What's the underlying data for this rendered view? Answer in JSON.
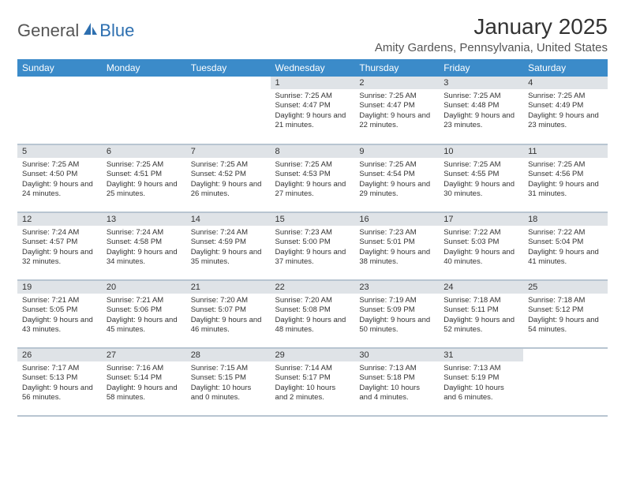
{
  "logo": {
    "general": "General",
    "blue": "Blue"
  },
  "title": "January 2025",
  "location": "Amity Gardens, Pennsylvania, United States",
  "colors": {
    "header_bg": "#3b8bc9",
    "header_text": "#ffffff",
    "daybar_bg": "#dfe3e7",
    "row_border": "#b8c5d1",
    "logo_blue": "#2d6fb0"
  },
  "day_headers": [
    "Sunday",
    "Monday",
    "Tuesday",
    "Wednesday",
    "Thursday",
    "Friday",
    "Saturday"
  ],
  "weeks": [
    [
      null,
      null,
      null,
      {
        "n": "1",
        "sunrise": "7:25 AM",
        "sunset": "4:47 PM",
        "daylight": "9 hours and 21 minutes."
      },
      {
        "n": "2",
        "sunrise": "7:25 AM",
        "sunset": "4:47 PM",
        "daylight": "9 hours and 22 minutes."
      },
      {
        "n": "3",
        "sunrise": "7:25 AM",
        "sunset": "4:48 PM",
        "daylight": "9 hours and 23 minutes."
      },
      {
        "n": "4",
        "sunrise": "7:25 AM",
        "sunset": "4:49 PM",
        "daylight": "9 hours and 23 minutes."
      }
    ],
    [
      {
        "n": "5",
        "sunrise": "7:25 AM",
        "sunset": "4:50 PM",
        "daylight": "9 hours and 24 minutes."
      },
      {
        "n": "6",
        "sunrise": "7:25 AM",
        "sunset": "4:51 PM",
        "daylight": "9 hours and 25 minutes."
      },
      {
        "n": "7",
        "sunrise": "7:25 AM",
        "sunset": "4:52 PM",
        "daylight": "9 hours and 26 minutes."
      },
      {
        "n": "8",
        "sunrise": "7:25 AM",
        "sunset": "4:53 PM",
        "daylight": "9 hours and 27 minutes."
      },
      {
        "n": "9",
        "sunrise": "7:25 AM",
        "sunset": "4:54 PM",
        "daylight": "9 hours and 29 minutes."
      },
      {
        "n": "10",
        "sunrise": "7:25 AM",
        "sunset": "4:55 PM",
        "daylight": "9 hours and 30 minutes."
      },
      {
        "n": "11",
        "sunrise": "7:25 AM",
        "sunset": "4:56 PM",
        "daylight": "9 hours and 31 minutes."
      }
    ],
    [
      {
        "n": "12",
        "sunrise": "7:24 AM",
        "sunset": "4:57 PM",
        "daylight": "9 hours and 32 minutes."
      },
      {
        "n": "13",
        "sunrise": "7:24 AM",
        "sunset": "4:58 PM",
        "daylight": "9 hours and 34 minutes."
      },
      {
        "n": "14",
        "sunrise": "7:24 AM",
        "sunset": "4:59 PM",
        "daylight": "9 hours and 35 minutes."
      },
      {
        "n": "15",
        "sunrise": "7:23 AM",
        "sunset": "5:00 PM",
        "daylight": "9 hours and 37 minutes."
      },
      {
        "n": "16",
        "sunrise": "7:23 AM",
        "sunset": "5:01 PM",
        "daylight": "9 hours and 38 minutes."
      },
      {
        "n": "17",
        "sunrise": "7:22 AM",
        "sunset": "5:03 PM",
        "daylight": "9 hours and 40 minutes."
      },
      {
        "n": "18",
        "sunrise": "7:22 AM",
        "sunset": "5:04 PM",
        "daylight": "9 hours and 41 minutes."
      }
    ],
    [
      {
        "n": "19",
        "sunrise": "7:21 AM",
        "sunset": "5:05 PM",
        "daylight": "9 hours and 43 minutes."
      },
      {
        "n": "20",
        "sunrise": "7:21 AM",
        "sunset": "5:06 PM",
        "daylight": "9 hours and 45 minutes."
      },
      {
        "n": "21",
        "sunrise": "7:20 AM",
        "sunset": "5:07 PM",
        "daylight": "9 hours and 46 minutes."
      },
      {
        "n": "22",
        "sunrise": "7:20 AM",
        "sunset": "5:08 PM",
        "daylight": "9 hours and 48 minutes."
      },
      {
        "n": "23",
        "sunrise": "7:19 AM",
        "sunset": "5:09 PM",
        "daylight": "9 hours and 50 minutes."
      },
      {
        "n": "24",
        "sunrise": "7:18 AM",
        "sunset": "5:11 PM",
        "daylight": "9 hours and 52 minutes."
      },
      {
        "n": "25",
        "sunrise": "7:18 AM",
        "sunset": "5:12 PM",
        "daylight": "9 hours and 54 minutes."
      }
    ],
    [
      {
        "n": "26",
        "sunrise": "7:17 AM",
        "sunset": "5:13 PM",
        "daylight": "9 hours and 56 minutes."
      },
      {
        "n": "27",
        "sunrise": "7:16 AM",
        "sunset": "5:14 PM",
        "daylight": "9 hours and 58 minutes."
      },
      {
        "n": "28",
        "sunrise": "7:15 AM",
        "sunset": "5:15 PM",
        "daylight": "10 hours and 0 minutes."
      },
      {
        "n": "29",
        "sunrise": "7:14 AM",
        "sunset": "5:17 PM",
        "daylight": "10 hours and 2 minutes."
      },
      {
        "n": "30",
        "sunrise": "7:13 AM",
        "sunset": "5:18 PM",
        "daylight": "10 hours and 4 minutes."
      },
      {
        "n": "31",
        "sunrise": "7:13 AM",
        "sunset": "5:19 PM",
        "daylight": "10 hours and 6 minutes."
      },
      null
    ]
  ]
}
